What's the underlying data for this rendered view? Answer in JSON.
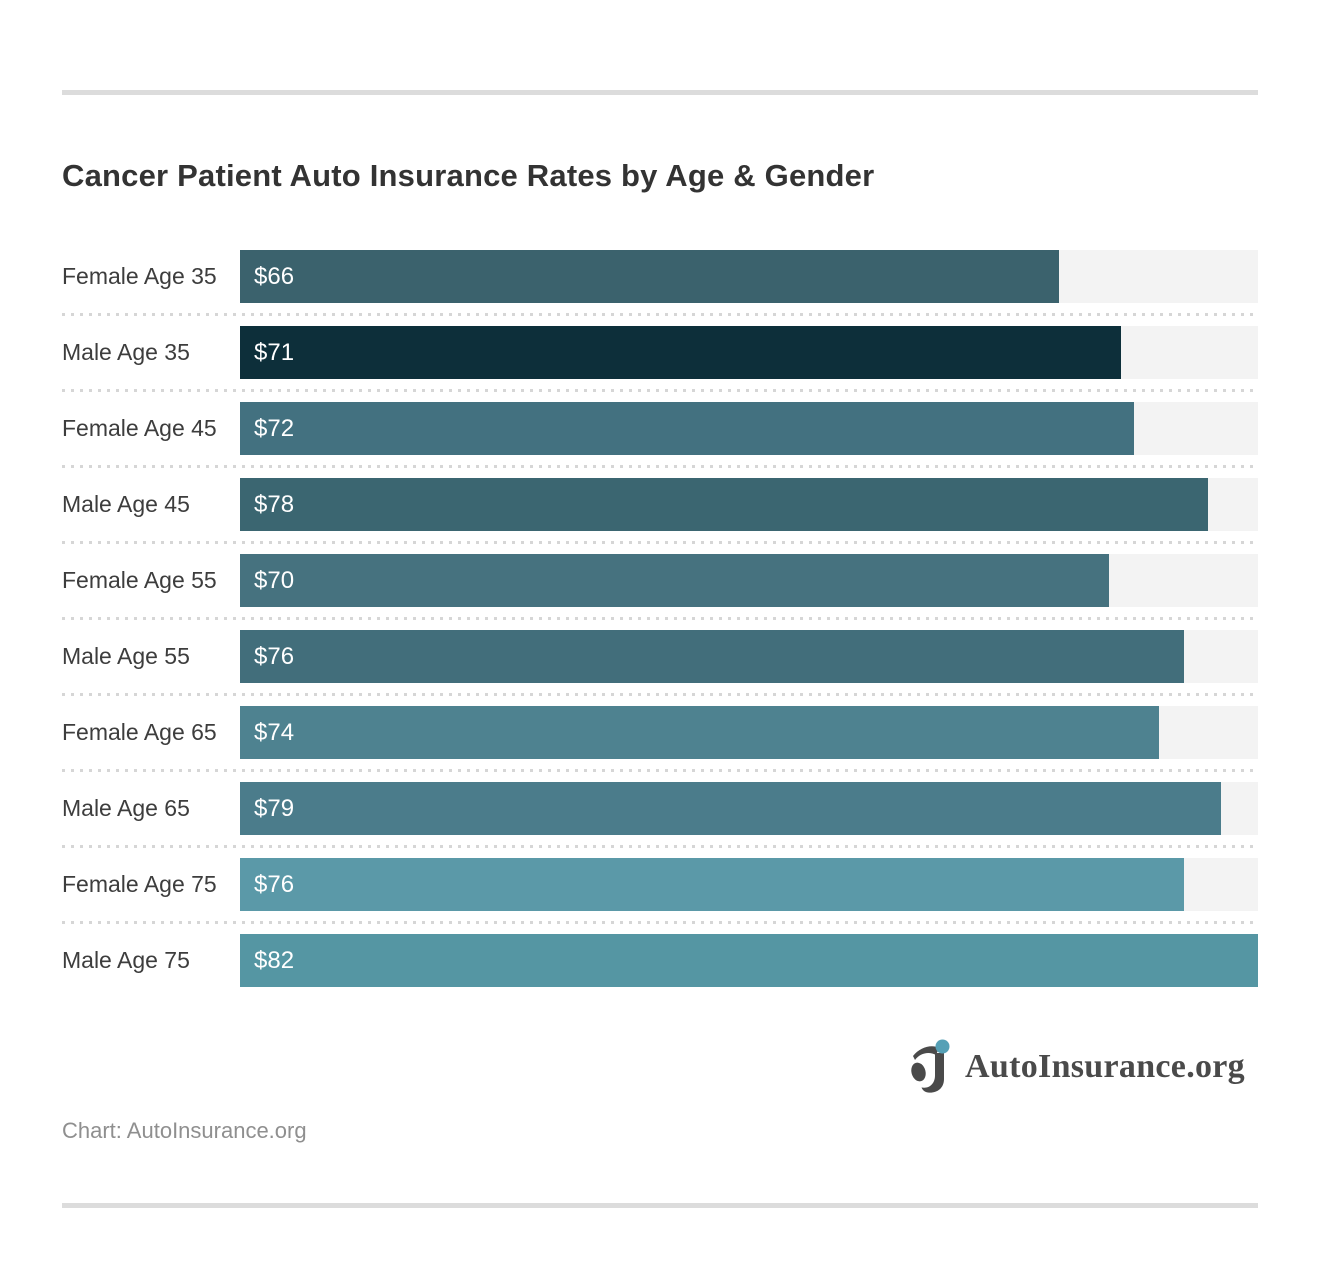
{
  "title": "Cancer Patient Auto Insurance Rates by Age & Gender",
  "attribution": "Chart: AutoInsurance.org",
  "logo": {
    "text": "AutoInsurance.org",
    "mark": "aj-monogram-icon",
    "mark_color": "#4a4a4a",
    "dot_color": "#55a0b6"
  },
  "colors": {
    "background": "#ffffff",
    "rule": "#dcdcdc",
    "separator_dots": "#d6d6d6",
    "track": "#f3f3f3",
    "title_text": "#333333",
    "label_text": "#3d3d3d",
    "value_text": "#ffffff",
    "attribution_text": "#8f8f8f"
  },
  "chart_data": {
    "type": "bar",
    "orientation": "horizontal",
    "title": "Cancer Patient Auto Insurance Rates by Age & Gender",
    "categories": [
      "Female Age 35",
      "Male Age 35",
      "Female Age 45",
      "Male Age 45",
      "Female Age 55",
      "Male Age 55",
      "Female Age 65",
      "Male Age 65",
      "Female Age 75",
      "Male Age 75"
    ],
    "values": [
      66,
      71,
      72,
      78,
      70,
      76,
      74,
      79,
      76,
      82
    ],
    "value_labels": [
      "$66",
      "$71",
      "$72",
      "$78",
      "$70",
      "$76",
      "$74",
      "$79",
      "$76",
      "$82"
    ],
    "bar_colors": [
      "#3b626d",
      "#0d2f3a",
      "#437180",
      "#3b6671",
      "#46727f",
      "#426e7b",
      "#4e8290",
      "#4b7c8b",
      "#5b99a8",
      "#5596a3"
    ],
    "xlabel": "",
    "ylabel": "",
    "xlim": [
      0,
      82
    ],
    "grid": false,
    "legend": false,
    "value_label_position": "inside-start",
    "track_visible": true
  }
}
